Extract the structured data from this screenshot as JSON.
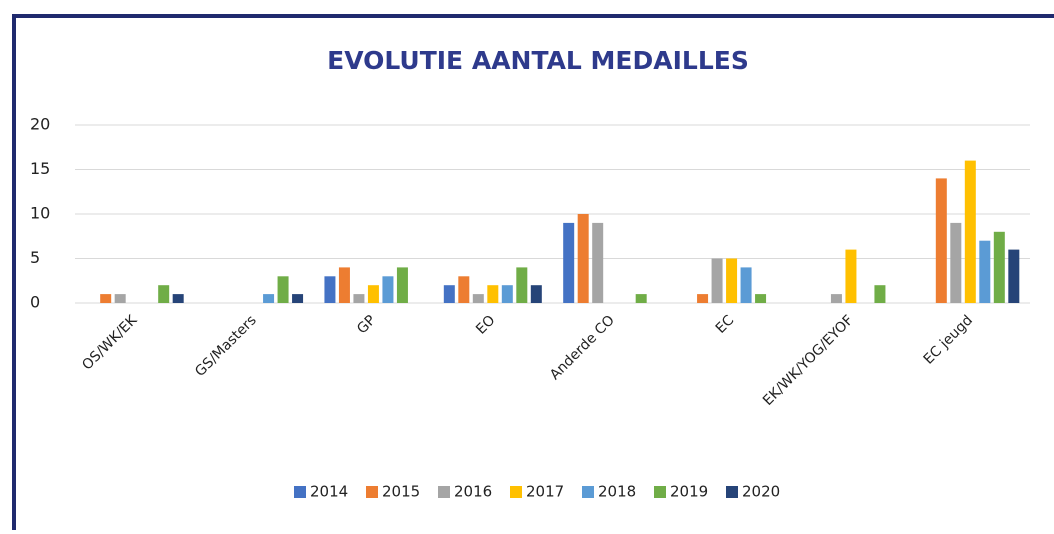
{
  "chart_data": {
    "type": "bar",
    "title": "EVOLUTIE AANTAL MEDAILLES",
    "categories": [
      "OS/WK/EK",
      "GS/Masters",
      "GP",
      "EO",
      "Anderde CO",
      "EC",
      "EK/WK/YOG/EYOF",
      "EC jeugd"
    ],
    "series": [
      {
        "name": "2014",
        "color": "#4472c4",
        "values": [
          0,
          0,
          3,
          2,
          9,
          0,
          0,
          0
        ]
      },
      {
        "name": "2015",
        "color": "#ed7d31",
        "values": [
          1,
          0,
          4,
          3,
          10,
          1,
          0,
          14
        ]
      },
      {
        "name": "2016",
        "color": "#a5a5a5",
        "values": [
          1,
          0,
          1,
          1,
          9,
          5,
          1,
          9
        ]
      },
      {
        "name": "2017",
        "color": "#ffc000",
        "values": [
          0,
          0,
          2,
          2,
          0,
          5,
          6,
          16
        ]
      },
      {
        "name": "2018",
        "color": "#5b9bd5",
        "values": [
          0,
          1,
          3,
          2,
          0,
          4,
          0,
          7
        ]
      },
      {
        "name": "2019",
        "color": "#70ad47",
        "values": [
          2,
          3,
          4,
          4,
          1,
          1,
          2,
          8
        ]
      },
      {
        "name": "2020",
        "color": "#264478",
        "values": [
          1,
          1,
          0,
          2,
          0,
          0,
          0,
          6
        ]
      }
    ],
    "ylim": [
      0,
      20
    ],
    "yticks": [
      0,
      5,
      10,
      15,
      20
    ],
    "grid": true,
    "legend": "bottom"
  }
}
